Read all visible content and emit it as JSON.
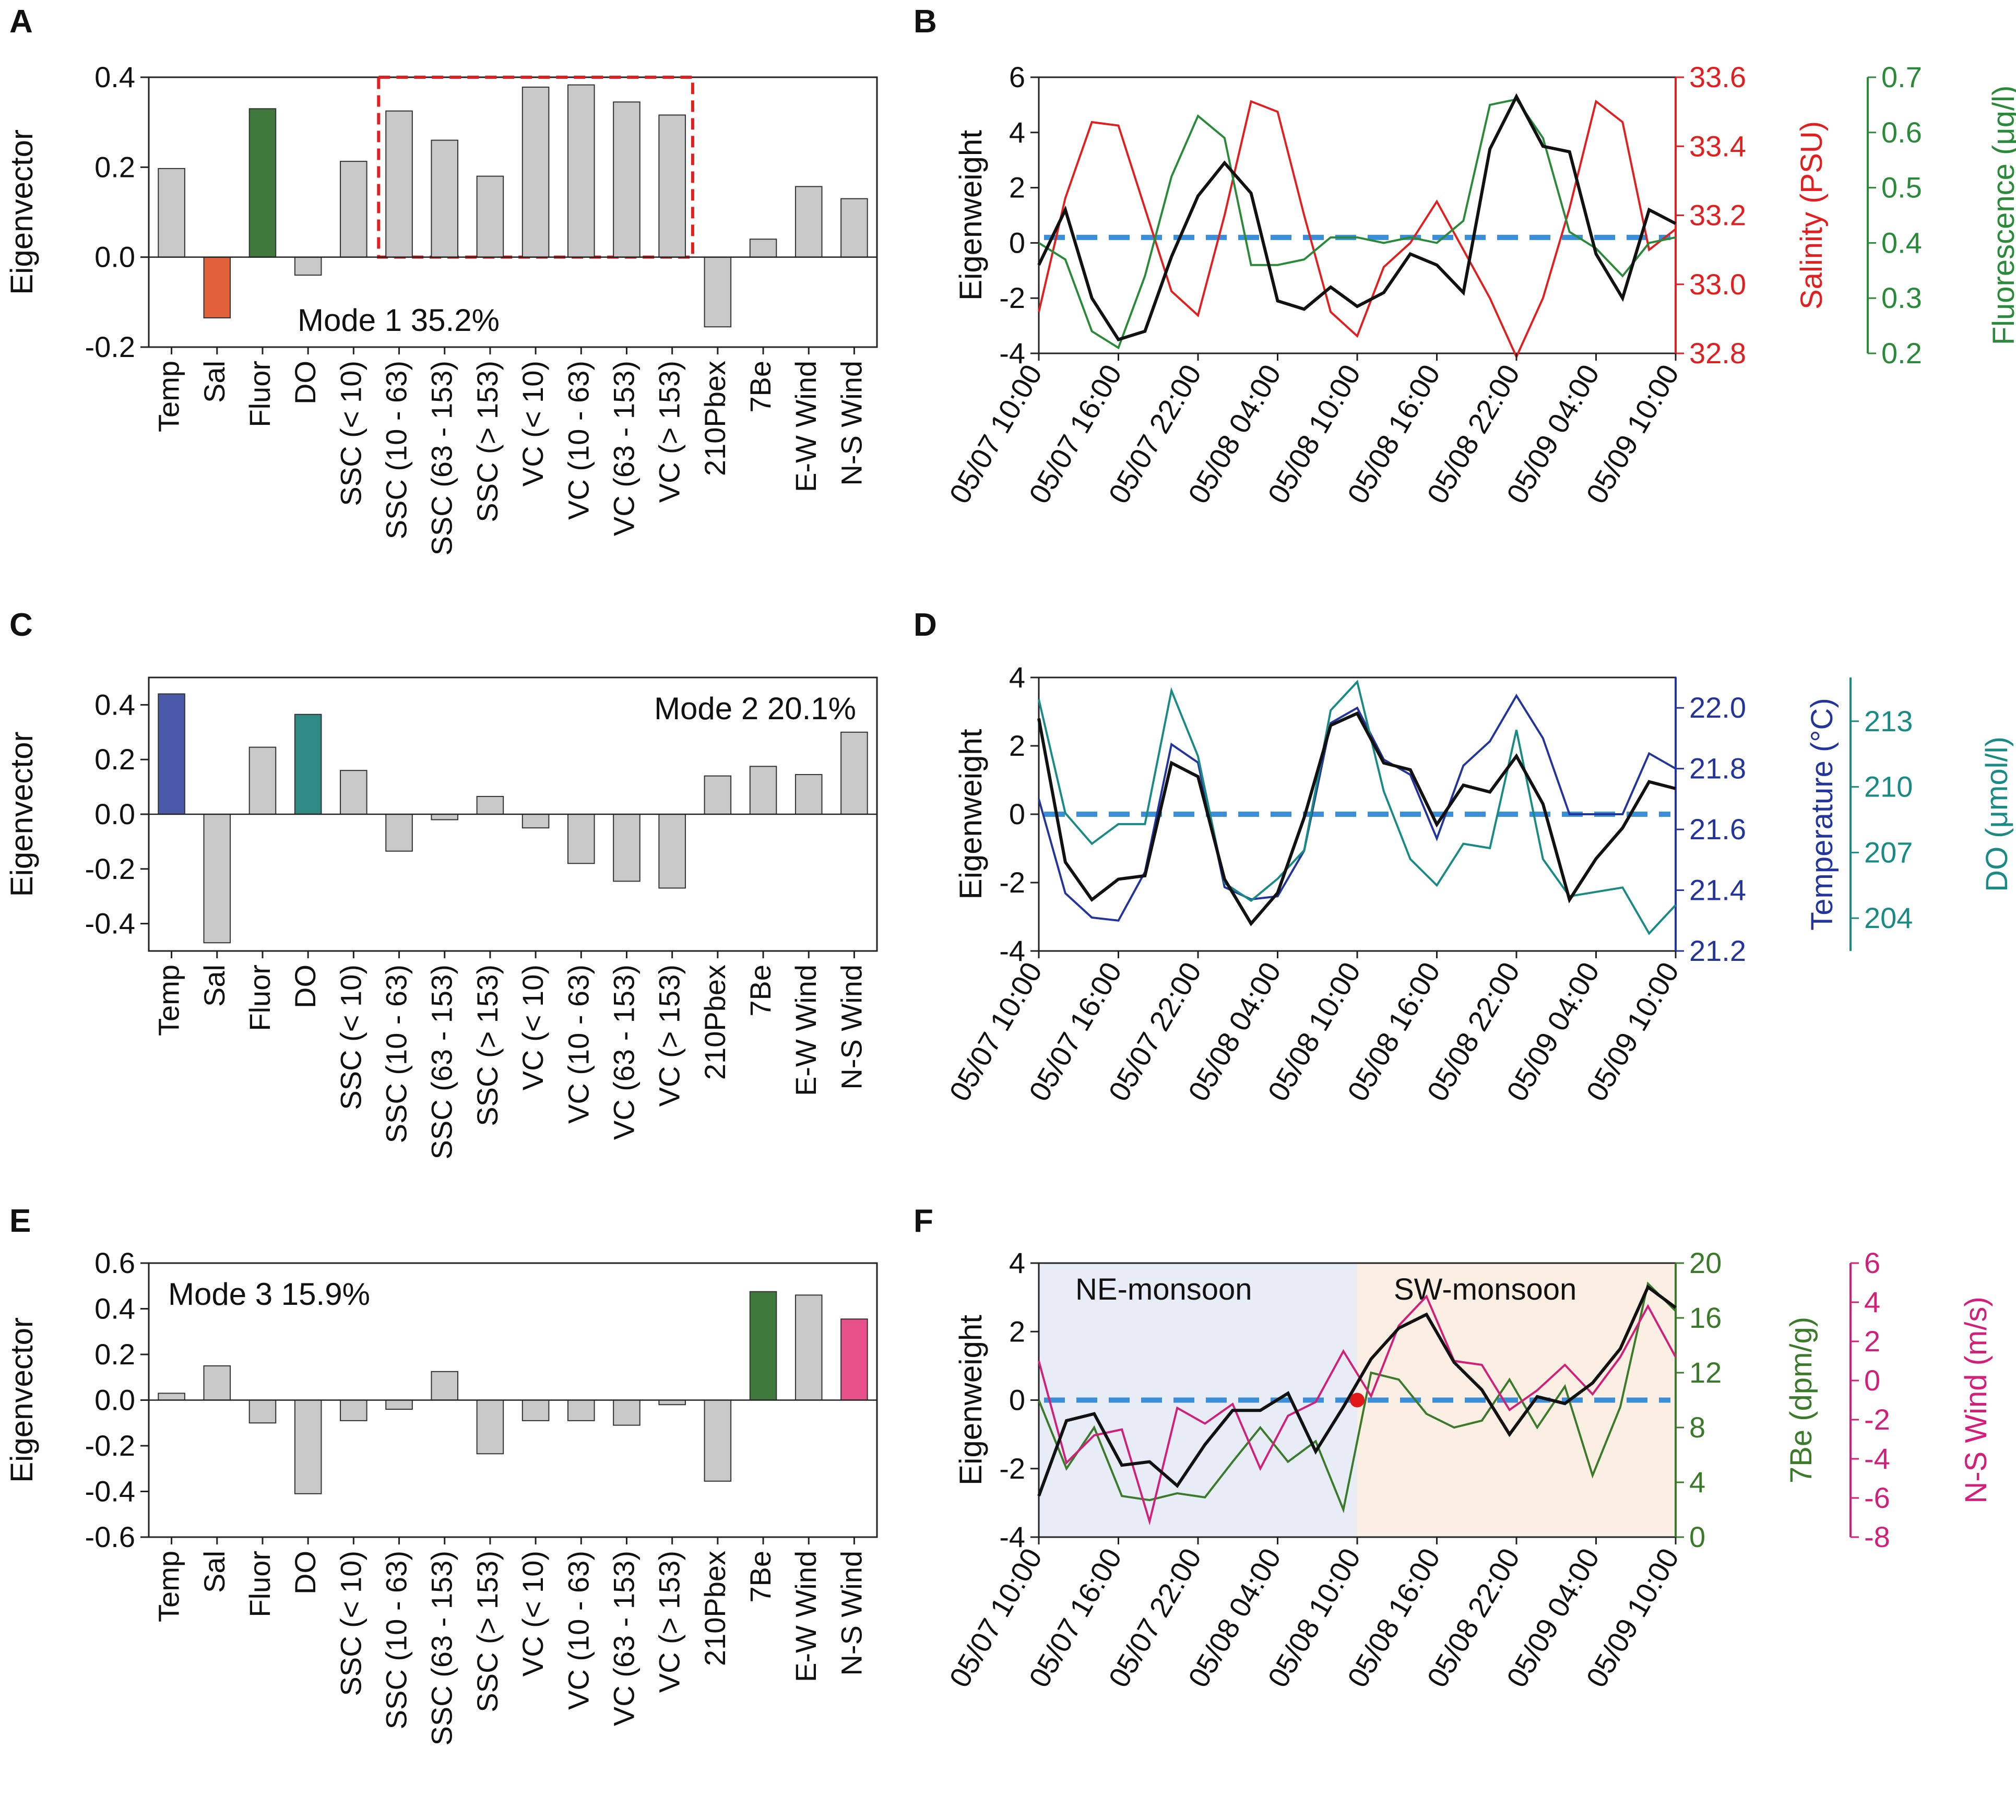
{
  "panel_labels": [
    "A",
    "B",
    "C",
    "D",
    "E",
    "F"
  ],
  "colors": {
    "bar_default": "#c8c8c8",
    "bar_red": "#e0603a",
    "bar_green": "#3f7a3c",
    "bar_blue": "#4a5aa8",
    "bar_teal": "#2f8a83",
    "bar_pink": "#e8508a",
    "eigen_line": "#111111",
    "salinity": "#e02020",
    "fluorescence": "#2a8a3a",
    "temperature": "#23359a",
    "do_line": "#1a8a84",
    "be7": "#3a7a2a",
    "wind": "#d0207a",
    "dash": "#3a8fd8",
    "ne_shade": "#e8ecf6",
    "sw_shade": "#fbeee2",
    "highlight_box": "#e02020"
  },
  "chart_data": [
    {
      "id": "A",
      "type": "bar",
      "title": "Mode 1 35.2%",
      "ylabel": "Eigenvector",
      "ylim": [
        -0.2,
        0.4
      ],
      "yticks": [
        "-0.2",
        "0.0",
        "0.2",
        "0.4"
      ],
      "categories": [
        "Temp",
        "Sal",
        "Fluor",
        "DO",
        "SSC  (< 10)",
        "SSC (10 - 63)",
        "SSC (63 - 153)",
        "SSC (> 153)",
        "VC  (< 10)",
        "VC (10 - 63)",
        "VC (63 - 153)",
        "VC (> 153)",
        "210Pbex",
        "7Be",
        "E-W Wind",
        "N-S Wind"
      ],
      "values": [
        0.197,
        -0.135,
        0.33,
        -0.04,
        0.213,
        0.325,
        0.26,
        0.18,
        0.378,
        0.383,
        0.345,
        0.316,
        -0.155,
        0.04,
        0.157,
        0.13
      ],
      "bar_colors": [
        "bar_default",
        "bar_red",
        "bar_green",
        "bar_default",
        "bar_default",
        "bar_default",
        "bar_default",
        "bar_default",
        "bar_default",
        "bar_default",
        "bar_default",
        "bar_default",
        "bar_default",
        "bar_default",
        "bar_default",
        "bar_default"
      ],
      "highlight_range": [
        "SSC (10 - 63)",
        "VC (> 153)"
      ]
    },
    {
      "id": "B",
      "type": "line",
      "ylabel": "Eigenweight",
      "ylim": [
        -4,
        6
      ],
      "yticks": [
        "-4",
        "-2",
        "0",
        "2",
        "4",
        "6"
      ],
      "xlim": [
        0,
        48
      ],
      "xticks": [
        "05/07 10:00",
        "05/07 16:00",
        "05/07 22:00",
        "05/08 04:00",
        "05/08 10:00",
        "05/08 16:00",
        "05/08 22:00",
        "05/09 04:00",
        "05/09 10:00"
      ],
      "x": [
        0,
        1,
        2,
        3,
        4,
        5,
        6,
        7,
        8,
        9,
        10,
        11,
        12,
        13,
        14,
        15,
        16,
        17,
        18,
        19,
        20,
        21,
        22,
        23,
        24,
        25,
        26,
        27,
        28,
        29,
        30,
        31,
        32,
        33,
        34,
        35,
        36,
        37,
        38,
        39,
        40,
        41,
        42,
        43,
        44,
        45,
        46,
        47,
        48
      ],
      "eigenweight": [
        -0.8,
        1.2,
        -2,
        -3.5,
        -3.2,
        -0.5,
        1.7,
        2.9,
        1.8,
        -2.1,
        -2.4,
        -1.6,
        -2.3,
        -1.8,
        -0.4,
        -0.8,
        -1.8,
        3.4,
        5.3,
        3.5,
        3.3,
        -0.4,
        -2,
        1.2,
        0.7
      ],
      "eigen_x": [
        0,
        1,
        2,
        3,
        4,
        5,
        6,
        7,
        8,
        9,
        10,
        11,
        12,
        13,
        14,
        15,
        16,
        17,
        18,
        19,
        20,
        21,
        22,
        23,
        24
      ],
      "right_axes": [
        {
          "label": "Salinity (PSU)",
          "ylim": [
            32.8,
            33.6
          ],
          "yticks": [
            "32.8",
            "33.0",
            "33.2",
            "33.4",
            "33.6"
          ],
          "color": "salinity",
          "values": [
            32.92,
            33.25,
            33.47,
            33.46,
            33.22,
            32.98,
            32.91,
            33.2,
            33.53,
            33.5,
            33.2,
            32.92,
            32.85,
            33.05,
            33.12,
            33.24,
            33.1,
            32.96,
            32.79,
            32.96,
            33.22,
            33.53,
            33.47,
            33.1,
            33.16
          ]
        },
        {
          "label": "Fluorescence (μg/l)",
          "ylim": [
            0.2,
            0.7
          ],
          "yticks": [
            "0.2",
            "0.3",
            "0.4",
            "0.5",
            "0.6",
            "0.7"
          ],
          "color": "fluorescence",
          "values": [
            0.4,
            0.37,
            0.24,
            0.21,
            0.34,
            0.52,
            0.63,
            0.59,
            0.36,
            0.36,
            0.37,
            0.41,
            0.41,
            0.4,
            0.41,
            0.4,
            0.44,
            0.65,
            0.66,
            0.59,
            0.42,
            0.39,
            0.34,
            0.4,
            0.41
          ]
        }
      ],
      "reference_line": 0.2
    },
    {
      "id": "C",
      "type": "bar",
      "title": "Mode 2 20.1%",
      "ylabel": "Eigenvector",
      "ylim": [
        -0.5,
        0.5
      ],
      "yticks": [
        "-0.4",
        "-0.2",
        "0.0",
        "0.2",
        "0.4"
      ],
      "categories": [
        "Temp",
        "Sal",
        "Fluor",
        "DO",
        "SSC  (< 10)",
        "SSC (10 - 63)",
        "SSC (63 - 153)",
        "SSC (> 153)",
        "VC  (< 10)",
        "VC (10 - 63)",
        "VC (63 - 153)",
        "VC (> 153)",
        "210Pbex",
        "7Be",
        "E-W Wind",
        "N-S Wind"
      ],
      "values": [
        0.44,
        -0.47,
        0.245,
        0.365,
        0.16,
        -0.135,
        -0.02,
        0.065,
        -0.05,
        -0.18,
        -0.245,
        -0.27,
        0.14,
        0.175,
        0.145,
        0.3
      ],
      "bar_colors": [
        "bar_blue",
        "bar_default",
        "bar_default",
        "bar_teal",
        "bar_default",
        "bar_default",
        "bar_default",
        "bar_default",
        "bar_default",
        "bar_default",
        "bar_default",
        "bar_default",
        "bar_default",
        "bar_default",
        "bar_default",
        "bar_default"
      ]
    },
    {
      "id": "D",
      "type": "line",
      "ylabel": "Eigenweight",
      "ylim": [
        -4,
        4
      ],
      "yticks": [
        "-4",
        "-2",
        "0",
        "2",
        "4"
      ],
      "xticks": [
        "05/07 10:00",
        "05/07 16:00",
        "05/07 22:00",
        "05/08 04:00",
        "05/08 10:00",
        "05/08 16:00",
        "05/08 22:00",
        "05/09 04:00",
        "05/09 10:00"
      ],
      "eigenweight": [
        2.8,
        -1.4,
        -2.5,
        -1.9,
        -1.8,
        1.5,
        1.1,
        -1.9,
        -3.2,
        -2.3,
        -0.1,
        2.6,
        2.95,
        1.5,
        1.3,
        -0.3,
        0.85,
        0.65,
        1.7,
        0.3,
        -2.5,
        -1.3,
        -0.4,
        0.95,
        0.75
      ],
      "right_axes": [
        {
          "label": "Temperature (°C)",
          "ylim": [
            21.2,
            22.1
          ],
          "yticks": [
            "21.2",
            "21.4",
            "21.6",
            "21.8",
            "22.0"
          ],
          "color": "temperature",
          "values": [
            21.7,
            21.39,
            21.31,
            21.3,
            21.46,
            21.88,
            21.82,
            21.41,
            21.37,
            21.38,
            21.53,
            21.95,
            22,
            21.83,
            21.78,
            21.57,
            21.81,
            21.89,
            22.04,
            21.9,
            21.65,
            21.65,
            21.65,
            21.85,
            21.8
          ]
        },
        {
          "label": "DO (μmol/l)",
          "ylim": [
            202.5,
            215.0
          ],
          "yticks": [
            "204",
            "207",
            "210",
            "213"
          ],
          "color": "do_line",
          "values": [
            214,
            208.8,
            207.4,
            208.3,
            208.3,
            214.4,
            211.4,
            205.6,
            204.8,
            205.8,
            207.1,
            213.5,
            214.8,
            209.8,
            206.7,
            205.5,
            207.4,
            207.2,
            212.6,
            206.7,
            205,
            205.2,
            205.4,
            203.3,
            204.6
          ]
        }
      ],
      "reference_line": 0
    },
    {
      "id": "E",
      "type": "bar",
      "title": "Mode 3 15.9%",
      "ylabel": "Eigenvector",
      "ylim": [
        -0.6,
        0.6
      ],
      "yticks": [
        "-0.6",
        "-0.4",
        "-0.2",
        "0.0",
        "0.2",
        "0.4",
        "0.6"
      ],
      "categories": [
        "Temp",
        "Sal",
        "Fluor",
        "DO",
        "SSC  (< 10)",
        "SSC (10 - 63)",
        "SSC (63 - 153)",
        "SSC (> 153)",
        "VC  (< 10)",
        "VC (10 - 63)",
        "VC (63 - 153)",
        "VC (> 153)",
        "210Pbex",
        "7Be",
        "E-W Wind",
        "N-S Wind"
      ],
      "values": [
        0.03,
        0.15,
        -0.1,
        -0.41,
        -0.09,
        -0.04,
        0.125,
        -0.235,
        -0.09,
        -0.09,
        -0.11,
        -0.02,
        -0.355,
        0.475,
        0.46,
        0.355
      ],
      "bar_colors": [
        "bar_default",
        "bar_default",
        "bar_default",
        "bar_default",
        "bar_default",
        "bar_default",
        "bar_default",
        "bar_default",
        "bar_default",
        "bar_default",
        "bar_default",
        "bar_default",
        "bar_default",
        "bar_green",
        "bar_default",
        "bar_pink"
      ]
    },
    {
      "id": "F",
      "type": "line",
      "ylabel": "Eigenweight",
      "ylim": [
        -4,
        4
      ],
      "yticks": [
        "-4",
        "-2",
        "0",
        "2",
        "4"
      ],
      "xticks": [
        "05/07 10:00",
        "05/07 16:00",
        "05/07 22:00",
        "05/08 04:00",
        "05/08 10:00",
        "05/08 16:00",
        "05/08 22:00",
        "05/09 04:00",
        "05/09 10:00"
      ],
      "regions": [
        {
          "label": "NE-monsoon",
          "x_from": 0,
          "x_to": 24,
          "color": "ne_shade"
        },
        {
          "label": "SW-monsoon",
          "x_from": 24,
          "x_to": 48,
          "color": "sw_shade"
        }
      ],
      "marker": {
        "x": 24,
        "y": 0
      },
      "eigenweight": [
        -2.8,
        -0.6,
        -0.4,
        -1.9,
        -1.8,
        -2.5,
        -1.3,
        -0.3,
        -0.3,
        0.2,
        -1.5,
        -0.2,
        1.2,
        2.1,
        2.5,
        1.1,
        0.3,
        -1,
        0.1,
        -0.1,
        0.5,
        1.5,
        3.3,
        2.7
      ],
      "right_axes": [
        {
          "label": "7Be (dpm/g)",
          "ylim": [
            0,
            20
          ],
          "yticks": [
            "0",
            "4",
            "8",
            "12",
            "16",
            "20"
          ],
          "color": "be7",
          "values": [
            10,
            5,
            8,
            3,
            2.7,
            3.2,
            2.9,
            5.5,
            8,
            5.5,
            7,
            2,
            12,
            11.5,
            9,
            8,
            8.5,
            11.5,
            8,
            11,
            4.5,
            9.5,
            18.5,
            16.5
          ]
        },
        {
          "label": "N-S Wind (m/s)",
          "ylim": [
            -8,
            6
          ],
          "yticks": [
            "-8",
            "-6",
            "-4",
            "-2",
            "0",
            "2",
            "4",
            "6"
          ],
          "color": "wind",
          "values": [
            1,
            -4.2,
            -2.8,
            -2.5,
            -7.2,
            -1.4,
            -2.2,
            -1.2,
            -4.5,
            -1.8,
            -1.1,
            1.5,
            -0.8,
            2.8,
            4.3,
            1,
            0.8,
            -1.5,
            -0.5,
            0.8,
            -0.7,
            1.2,
            3.8,
            1.2
          ]
        }
      ],
      "reference_line": 0
    }
  ]
}
